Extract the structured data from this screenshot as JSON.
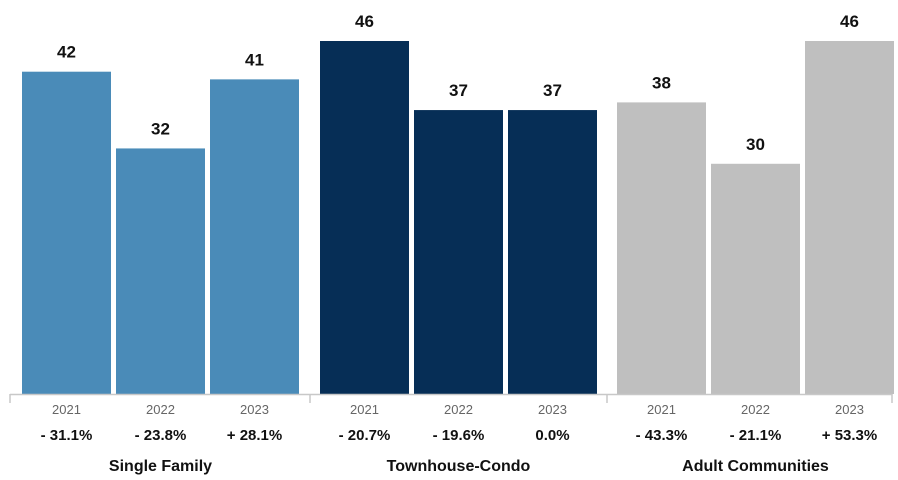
{
  "chart_data": {
    "type": "bar",
    "title": "",
    "xlabel": "",
    "ylabel": "",
    "ylim": [
      0,
      46
    ],
    "grid": false,
    "groups": [
      {
        "name": "Single Family",
        "color": "#4a8bb8",
        "bars": [
          {
            "year": "2021",
            "value": 42,
            "value_label": "42",
            "change": "- 31.1%"
          },
          {
            "year": "2022",
            "value": 32,
            "value_label": "32",
            "change": "- 23.8%"
          },
          {
            "year": "2023",
            "value": 41,
            "value_label": "41",
            "change": "+ 28.1%"
          }
        ]
      },
      {
        "name": "Townhouse-Condo",
        "color": "#062e56",
        "bars": [
          {
            "year": "2021",
            "value": 46,
            "value_label": "46",
            "change": "- 20.7%"
          },
          {
            "year": "2022",
            "value": 37,
            "value_label": "37",
            "change": "- 19.6%"
          },
          {
            "year": "2023",
            "value": 37,
            "value_label": "37",
            "change": "0.0%"
          }
        ]
      },
      {
        "name": "Adult Communities",
        "color": "#bfbfbf",
        "bars": [
          {
            "year": "2021",
            "value": 38,
            "value_label": "38",
            "change": "- 43.3%"
          },
          {
            "year": "2022",
            "value": 30,
            "value_label": "30",
            "change": "- 21.1%"
          },
          {
            "year": "2023",
            "value": 46,
            "value_label": "46",
            "change": "+ 53.3%"
          }
        ]
      }
    ]
  }
}
